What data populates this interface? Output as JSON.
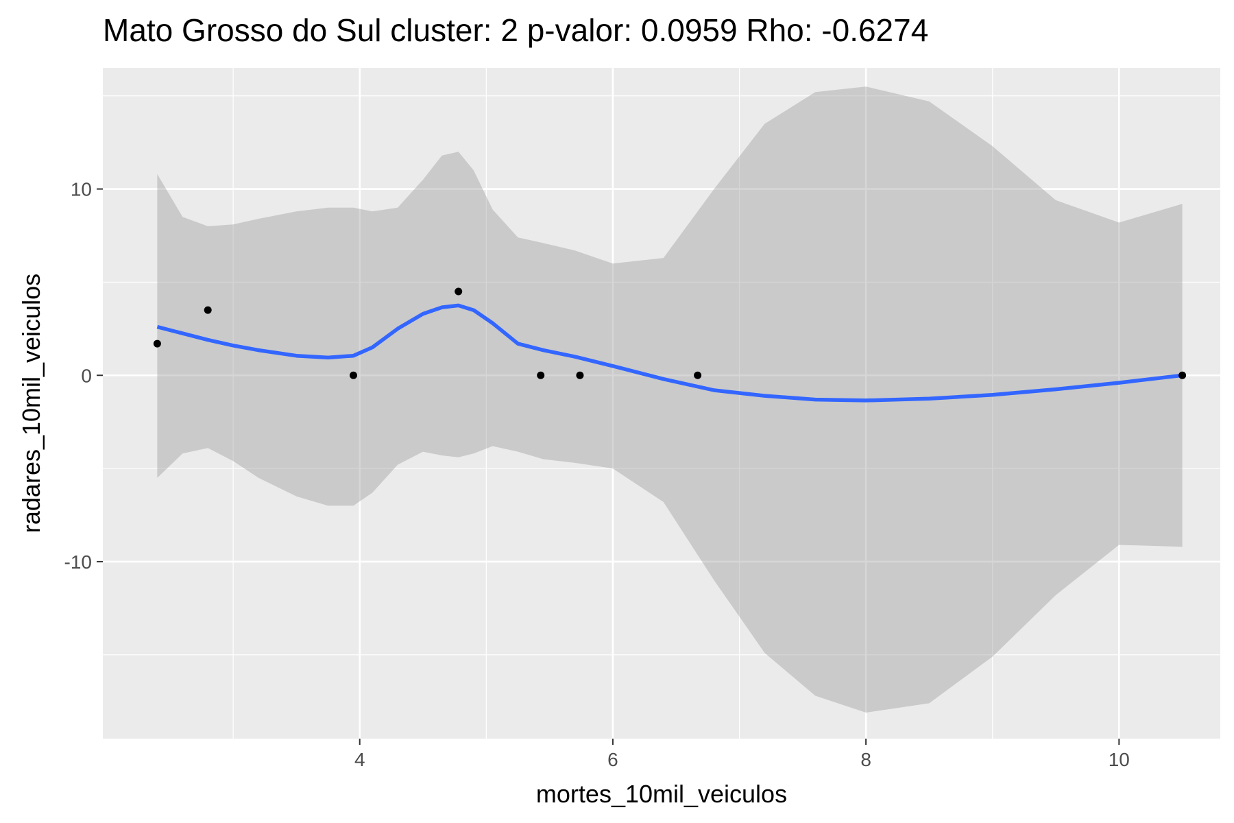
{
  "chart_data": {
    "type": "scatter",
    "title": "Mato Grosso do Sul cluster: 2 p-valor: 0.0959 Rho: -0.6274",
    "xlabel": "mortes_10mil_veiculos",
    "ylabel": "radares_10mil_veiculos",
    "xlim": [
      1.97,
      10.8
    ],
    "ylim": [
      -19.5,
      16.5
    ],
    "x_ticks": [
      4,
      6,
      8,
      10
    ],
    "x_tick_labels": [
      "4",
      "6",
      "8",
      "10"
    ],
    "y_ticks": [
      -10,
      0,
      10
    ],
    "y_tick_labels": [
      "-10",
      "0",
      "10"
    ],
    "x_minor_grid": [
      3,
      5,
      7,
      9
    ],
    "y_minor_grid": [
      -15,
      -5,
      5,
      15
    ],
    "grid": true,
    "legend": "none",
    "colors": {
      "panel_background": "#ebebeb",
      "grid": "#ffffff",
      "points": "#000000",
      "smooth_line": "#3366ff",
      "confidence_band": "#999999"
    },
    "points": [
      {
        "x": 2.4,
        "y": 1.7
      },
      {
        "x": 2.8,
        "y": 3.5
      },
      {
        "x": 3.95,
        "y": 0
      },
      {
        "x": 4.78,
        "y": 4.5
      },
      {
        "x": 5.43,
        "y": 0
      },
      {
        "x": 5.74,
        "y": 0
      },
      {
        "x": 6.67,
        "y": 0
      },
      {
        "x": 10.5,
        "y": 0
      }
    ],
    "smooth": {
      "method": "loess",
      "x": [
        2.4,
        2.6,
        2.8,
        3.0,
        3.2,
        3.5,
        3.75,
        3.95,
        4.1,
        4.3,
        4.5,
        4.65,
        4.78,
        4.9,
        5.05,
        5.25,
        5.45,
        5.7,
        6.0,
        6.4,
        6.8,
        7.2,
        7.6,
        8.0,
        8.5,
        9.0,
        9.5,
        10.0,
        10.5
      ],
      "y": [
        2.6,
        2.25,
        1.9,
        1.6,
        1.35,
        1.05,
        0.95,
        1.05,
        1.5,
        2.5,
        3.3,
        3.65,
        3.75,
        3.5,
        2.8,
        1.7,
        1.35,
        1.0,
        0.5,
        -0.2,
        -0.8,
        -1.1,
        -1.3,
        -1.35,
        -1.25,
        -1.05,
        -0.75,
        -0.4,
        0.0
      ],
      "upper": [
        10.8,
        8.5,
        8.0,
        8.1,
        8.4,
        8.8,
        9.0,
        9.0,
        8.8,
        9.0,
        10.5,
        11.8,
        12.0,
        11.0,
        8.9,
        7.4,
        7.1,
        6.7,
        6.0,
        6.3,
        10.0,
        13.5,
        15.2,
        15.5,
        14.7,
        12.3,
        9.4,
        8.2,
        9.2
      ],
      "lower": [
        -5.5,
        -4.2,
        -3.9,
        -4.6,
        -5.5,
        -6.5,
        -7.0,
        -7.0,
        -6.3,
        -4.8,
        -4.1,
        -4.3,
        -4.4,
        -4.2,
        -3.8,
        -4.1,
        -4.5,
        -4.7,
        -5.0,
        -6.8,
        -11.0,
        -14.9,
        -17.2,
        -18.1,
        -17.6,
        -15.1,
        -11.8,
        -9.1,
        -9.2
      ]
    }
  }
}
